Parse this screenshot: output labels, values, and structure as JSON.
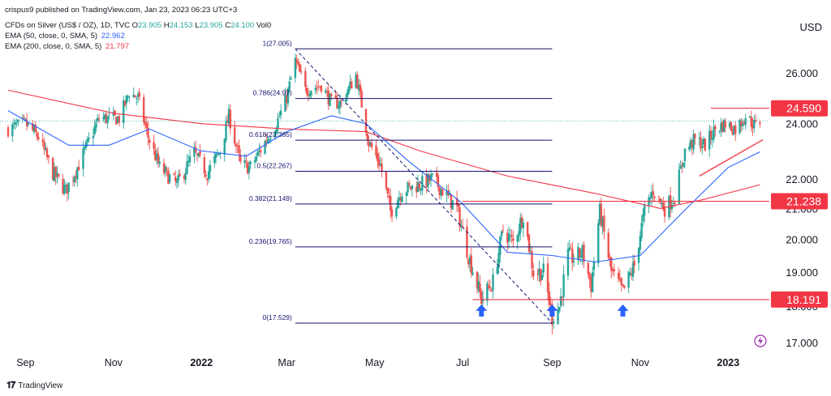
{
  "header": {
    "published": "crispus9 published on TradingView.com, Jan 23, 2023 06:23 UTC+3",
    "symbol": "CFDs on Silver (US$ / OZ), 1D, TVC",
    "ohlc": [
      {
        "k": "O",
        "v": "23.905"
      },
      {
        "k": "H",
        "v": "24.153"
      },
      {
        "k": "L",
        "v": "23.905"
      },
      {
        "k": "C",
        "v": "24.100"
      }
    ],
    "vol": "Vol0",
    "ema50_label": "EMA (50, close, 0, SMA, 5)",
    "ema50_value": "22.962",
    "ema200_label": "EMA (200, close, 0, SMA, 5)",
    "ema200_value": "21.797"
  },
  "colors": {
    "up": "#26a69a",
    "down": "#ef5350",
    "ema50": "#2962ff",
    "ema200": "#f23645",
    "fib": "#131270",
    "level": "#f23645",
    "arrow": "#2962ff",
    "trend": "#f23645"
  },
  "footer": {
    "brand": "TradingView"
  },
  "chart_data": {
    "type": "candlestick",
    "currency": "USD",
    "price_axis": [
      "26.000",
      "24.000",
      "22.000",
      "21.000",
      "20.000",
      "19.000",
      "18.000",
      "17.000"
    ],
    "time_axis": [
      "Sep",
      "Nov",
      "2022",
      "Mar",
      "May",
      "Jul",
      "Sep",
      "Nov",
      "2023"
    ],
    "price_badges": [
      "24.590",
      "21.238",
      "18.191"
    ],
    "fibonacci": [
      {
        "label": "1(27.005)",
        "price": 27.005
      },
      {
        "label": "0.786(24.97)",
        "price": 24.97
      },
      {
        "label": "0.618(23.385)",
        "price": 23.385
      },
      {
        "label": "0.5(22.267)",
        "price": 22.267
      },
      {
        "label": "0.382(21.149)",
        "price": 21.149
      },
      {
        "label": "0.236(19.765)",
        "price": 19.765
      },
      {
        "label": "0(17.529)",
        "price": 17.529
      }
    ],
    "horizontal_levels": [
      24.59,
      21.238,
      18.191
    ],
    "close_anchor_points": [
      [
        "2021-08-20",
        23.8
      ],
      [
        "2021-09-01",
        24.0
      ],
      [
        "2021-09-10",
        23.5
      ],
      [
        "2021-09-20",
        22.2
      ],
      [
        "2021-09-29",
        21.6
      ],
      [
        "2021-10-08",
        22.5
      ],
      [
        "2021-10-22",
        24.2
      ],
      [
        "2021-11-05",
        24.2
      ],
      [
        "2021-11-12",
        25.2
      ],
      [
        "2021-11-18",
        25.0
      ],
      [
        "2021-11-25",
        23.5
      ],
      [
        "2021-12-03",
        22.4
      ],
      [
        "2021-12-15",
        21.8
      ],
      [
        "2021-12-27",
        22.9
      ],
      [
        "2022-01-05",
        22.2
      ],
      [
        "2022-01-14",
        23.0
      ],
      [
        "2022-01-20",
        24.3
      ],
      [
        "2022-01-28",
        22.5
      ],
      [
        "2022-02-04",
        22.4
      ],
      [
        "2022-02-15",
        23.4
      ],
      [
        "2022-02-22",
        24.0
      ],
      [
        "2022-03-01",
        25.0
      ],
      [
        "2022-03-07",
        26.5
      ],
      [
        "2022-03-14",
        25.3
      ],
      [
        "2022-03-25",
        25.5
      ],
      [
        "2022-04-01",
        24.8
      ],
      [
        "2022-04-08",
        24.8
      ],
      [
        "2022-04-18",
        25.9
      ],
      [
        "2022-04-27",
        23.3
      ],
      [
        "2022-05-05",
        22.5
      ],
      [
        "2022-05-12",
        20.9
      ],
      [
        "2022-05-20",
        21.6
      ],
      [
        "2022-06-01",
        21.8
      ],
      [
        "2022-06-10",
        22.0
      ],
      [
        "2022-06-17",
        21.6
      ],
      [
        "2022-06-27",
        21.0
      ],
      [
        "2022-07-05",
        19.5
      ],
      [
        "2022-07-14",
        18.2
      ],
      [
        "2022-07-22",
        18.7
      ],
      [
        "2022-07-29",
        20.3
      ],
      [
        "2022-08-05",
        19.9
      ],
      [
        "2022-08-12",
        20.8
      ],
      [
        "2022-08-19",
        19.0
      ],
      [
        "2022-08-26",
        19.0
      ],
      [
        "2022-09-01",
        17.7
      ],
      [
        "2022-09-06",
        18.0
      ],
      [
        "2022-09-12",
        19.5
      ],
      [
        "2022-09-16",
        19.4
      ],
      [
        "2022-09-22",
        19.6
      ],
      [
        "2022-09-28",
        18.6
      ],
      [
        "2022-10-04",
        20.9
      ],
      [
        "2022-10-12",
        19.0
      ],
      [
        "2022-10-20",
        18.4
      ],
      [
        "2022-10-28",
        19.2
      ],
      [
        "2022-11-04",
        20.9
      ],
      [
        "2022-11-10",
        21.6
      ],
      [
        "2022-11-18",
        21.0
      ],
      [
        "2022-11-25",
        21.4
      ],
      [
        "2022-12-02",
        23.0
      ],
      [
        "2022-12-09",
        23.4
      ],
      [
        "2022-12-16",
        23.2
      ],
      [
        "2022-12-23",
        23.8
      ],
      [
        "2022-12-30",
        24.0
      ],
      [
        "2023-01-06",
        23.8
      ],
      [
        "2023-01-13",
        24.3
      ],
      [
        "2023-01-20",
        23.9
      ],
      [
        "2023-01-23",
        24.1
      ]
    ],
    "ema50_points": [
      [
        "2021-08-20",
        24.5
      ],
      [
        "2021-10-01",
        23.2
      ],
      [
        "2021-10-29",
        23.2
      ],
      [
        "2021-11-26",
        23.8
      ],
      [
        "2021-12-31",
        23.0
      ],
      [
        "2022-02-01",
        22.8
      ],
      [
        "2022-03-01",
        23.7
      ],
      [
        "2022-04-01",
        24.3
      ],
      [
        "2022-04-25",
        24.0
      ],
      [
        "2022-05-25",
        22.6
      ],
      [
        "2022-06-30",
        21.2
      ],
      [
        "2022-08-01",
        19.6
      ],
      [
        "2022-09-01",
        19.5
      ],
      [
        "2022-10-01",
        19.3
      ],
      [
        "2022-11-01",
        19.5
      ],
      [
        "2022-12-01",
        20.9
      ],
      [
        "2023-01-01",
        22.4
      ],
      [
        "2023-01-23",
        22.96
      ]
    ],
    "ema200_points": [
      [
        "2021-08-20",
        25.3
      ],
      [
        "2021-11-01",
        24.4
      ],
      [
        "2022-01-01",
        24.0
      ],
      [
        "2022-03-01",
        23.8
      ],
      [
        "2022-04-25",
        23.7
      ],
      [
        "2022-06-01",
        23.0
      ],
      [
        "2022-08-01",
        22.1
      ],
      [
        "2022-10-01",
        21.5
      ],
      [
        "2022-11-15",
        21.0
      ],
      [
        "2022-12-15",
        21.3
      ],
      [
        "2023-01-23",
        21.8
      ]
    ],
    "annotations": {
      "diagonal": [
        [
          "2022-03-07",
          27.0
        ],
        [
          "2022-09-01",
          17.53
        ]
      ],
      "rising_trendline": [
        [
          "2022-12-12",
          22.1
        ],
        [
          "2023-01-25",
          23.4
        ]
      ],
      "resistance": [
        [
          "2022-12-20",
          24.59
        ],
        [
          "2023-01-24",
          24.59
        ]
      ],
      "support_arrows": [
        "2022-07-14",
        "2022-09-01",
        "2022-10-20"
      ]
    }
  }
}
